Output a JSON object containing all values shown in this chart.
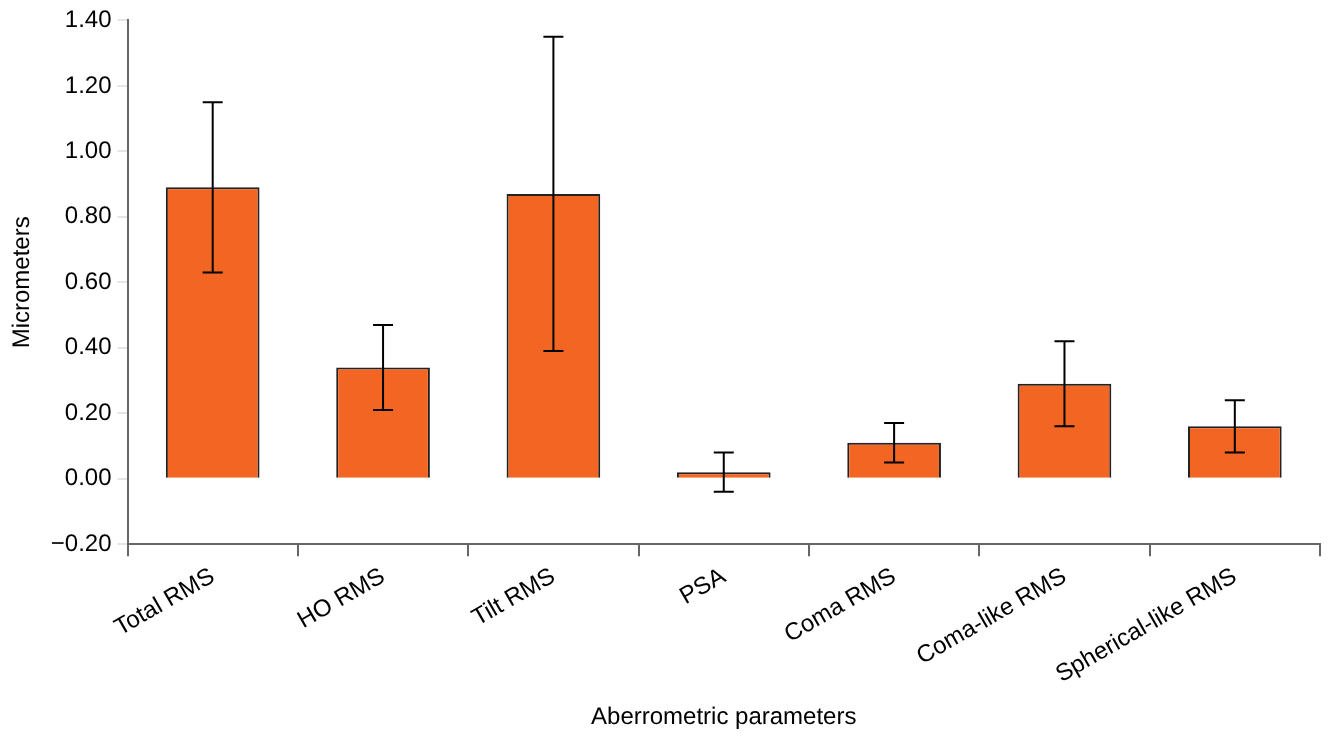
{
  "chart_data": {
    "type": "bar",
    "xlabel": "Aberrometric parameters",
    "ylabel": "Micrometers",
    "categories": [
      "Total RMS",
      "HO RMS",
      "Tilt RMS",
      "PSA",
      "Coma RMS",
      "Coma-like RMS",
      "Spherical-like RMS"
    ],
    "values": [
      0.89,
      0.34,
      0.87,
      0.02,
      0.11,
      0.29,
      0.16
    ],
    "errors": [
      0.26,
      0.13,
      0.48,
      0.06,
      0.06,
      0.13,
      0.08
    ],
    "color": "#f26522",
    "ylim": [
      -0.2,
      1.4
    ],
    "yticks": [
      {
        "value": -0.2,
        "label": "−0.20"
      },
      {
        "value": 0,
        "label": "0.00"
      },
      {
        "value": 0.2,
        "label": "0.20"
      },
      {
        "value": 0.4,
        "label": "0.40"
      },
      {
        "value": 0.6,
        "label": "0.60"
      },
      {
        "value": 0.8,
        "label": "0.80"
      },
      {
        "value": 1,
        "label": "1.00"
      },
      {
        "value": 1.2,
        "label": "1.20"
      },
      {
        "value": 1.4,
        "label": "1.40"
      }
    ],
    "grid": false,
    "legend": false
  }
}
